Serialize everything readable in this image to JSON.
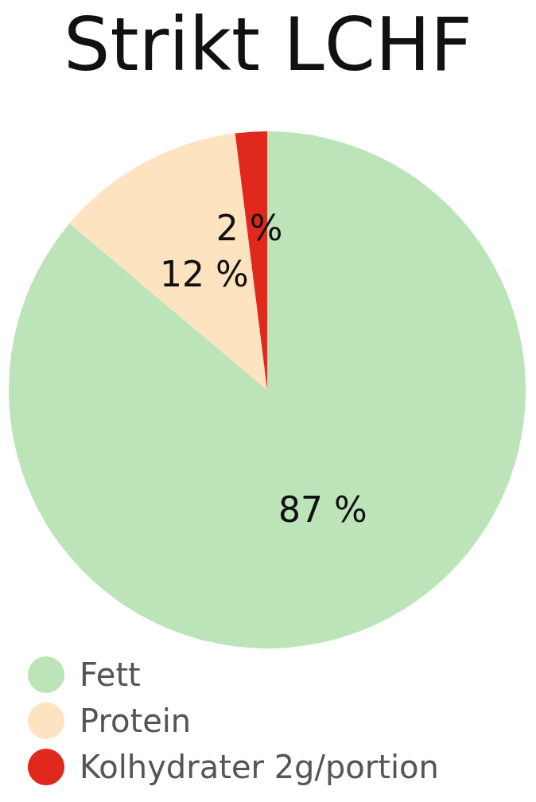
{
  "chart_data": {
    "type": "pie",
    "title": "Strikt LCHF",
    "categories": [
      "Fett",
      "Protein",
      "Kolhydrater 2g/portion"
    ],
    "values": [
      87,
      12,
      2
    ],
    "colors": [
      "#bce4b8",
      "#fde3c0",
      "#e0281c"
    ],
    "value_labels": [
      "87 %",
      "12 %",
      "2 %"
    ],
    "legend": "bottom left"
  }
}
